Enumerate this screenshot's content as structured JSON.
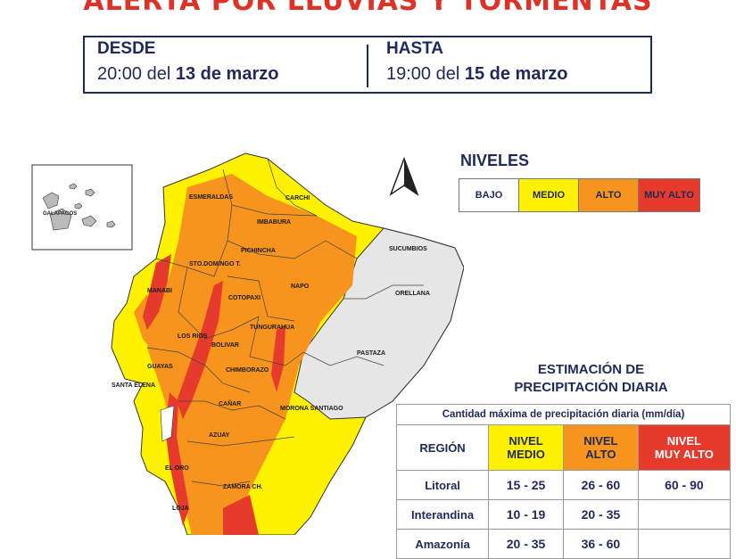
{
  "title": "ALERTA POR LLUVIAS Y TORMENTAS",
  "date_range": {
    "from_label": "DESDE",
    "from_time": "20:00 del ",
    "from_date": "13 de marzo",
    "to_label": "HASTA",
    "to_time": "19:00 del ",
    "to_date": "15 de marzo"
  },
  "legend": {
    "title": "NIVELES",
    "levels": [
      {
        "label": "BAJO",
        "color": "#ffffff"
      },
      {
        "label": "MEDIO",
        "color": "#fff200"
      },
      {
        "label": "ALTO",
        "color": "#f7941d"
      },
      {
        "label": "MUY ALTO",
        "color": "#e53a2c"
      }
    ]
  },
  "map": {
    "inset_label": "GALAPAGOS",
    "north_arrow": "north-arrow-icon",
    "provinces": [
      "ESMERALDAS",
      "CARCHI",
      "IMBABURA",
      "SUCUMBIOS",
      "PICHINCHA",
      "STO.DOMINGO T.",
      "MANABI",
      "NAPO",
      "ORELLANA",
      "COTOPAXI",
      "LOS RIOS",
      "TUNGURAHUA",
      "BOLIVAR",
      "PASTAZA",
      "GUAYAS",
      "CHIMBORAZO",
      "SANTA ELENA",
      "CAÑAR",
      "MORONA SANTIAGO",
      "AZUAY",
      "EL ORO",
      "ZAMORA CH.",
      "LOJA"
    ]
  },
  "estimation": {
    "title_line1": "ESTIMACIÓN DE",
    "title_line2": "PRECIPITACIÓN DIARIA",
    "caption": "Cantidad máxima de precipitación diaria (mm/día)",
    "headers": {
      "region": "REGIÓN",
      "medio": [
        "NIVEL",
        "MEDIO"
      ],
      "alto": [
        "NIVEL",
        "ALTO"
      ],
      "muy_alto": [
        "NIVEL",
        "MUY ALTO"
      ]
    },
    "rows": [
      {
        "region": "Litoral",
        "medio": "15 - 25",
        "alto": "26 - 60",
        "muy_alto": "60 - 90"
      },
      {
        "region": "Interandina",
        "medio": "10 - 19",
        "alto": "20 - 35",
        "muy_alto": ""
      },
      {
        "region": "Amazonía",
        "medio": "20 - 35",
        "alto": "36 - 60",
        "muy_alto": ""
      }
    ]
  }
}
